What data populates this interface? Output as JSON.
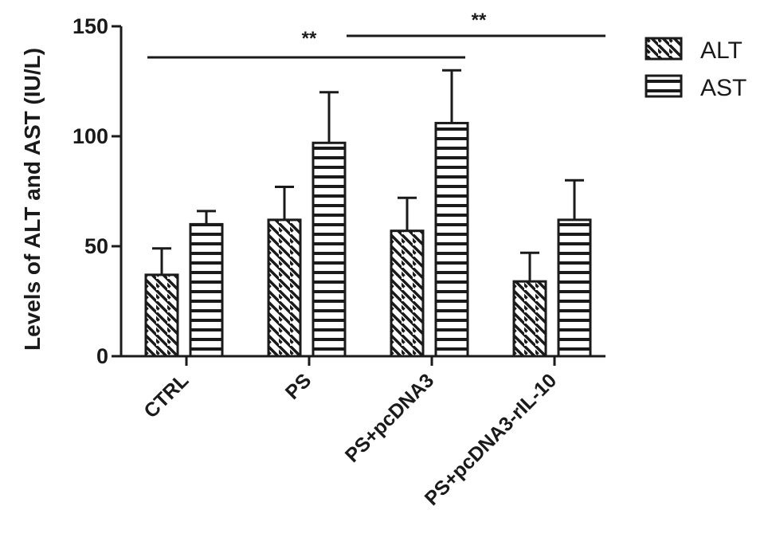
{
  "chart_data": {
    "type": "bar",
    "title": "",
    "xlabel": "",
    "ylabel": "Levels of ALT and AST (IU/L)",
    "ylim": [
      0,
      150
    ],
    "yticks": [
      0,
      50,
      100,
      150
    ],
    "grid": false,
    "legend_position": "top-right",
    "categories": [
      "CTRL",
      "PS",
      "PS+pcDNA3",
      "PS+pcDNA3-rIL-10"
    ],
    "series": [
      {
        "name": "ALT",
        "pattern": "diagonal-hatch",
        "values": [
          37,
          62,
          57,
          34
        ],
        "errors": [
          12,
          15,
          15,
          13
        ]
      },
      {
        "name": "AST",
        "pattern": "horizontal-hatch",
        "values": [
          60,
          97,
          106,
          62
        ],
        "errors": [
          6,
          23,
          24,
          18
        ]
      }
    ],
    "significance": [
      {
        "from_category": "CTRL",
        "to_category": "PS+pcDNA3",
        "label": "**"
      },
      {
        "from_category": "PS",
        "to_category": "PS+pcDNA3-rIL-10",
        "label": "**"
      }
    ],
    "colors": {
      "ink": "#1a1a1a",
      "fill": "#ffffff"
    }
  }
}
